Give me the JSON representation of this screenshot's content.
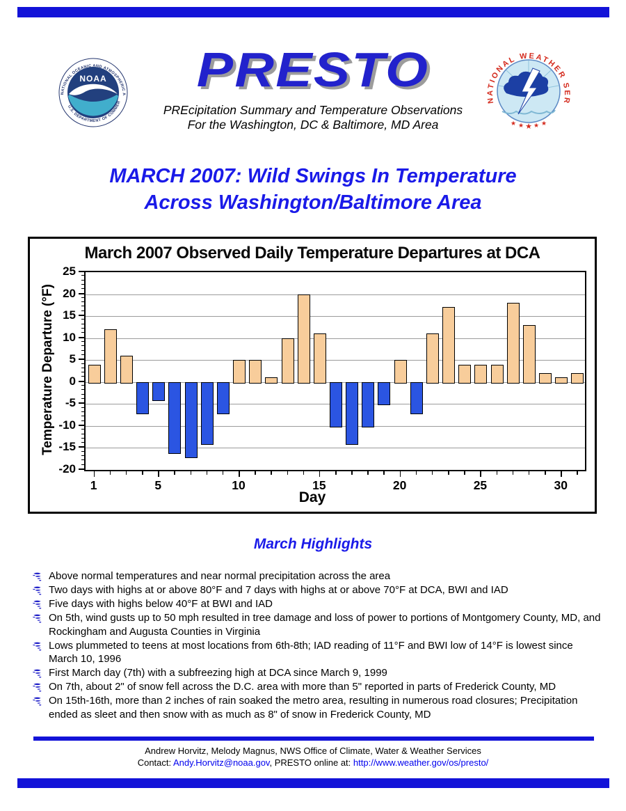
{
  "page": {
    "accent_blue": "#1a1ae8",
    "rule_blue": "#1313d8",
    "link_blue": "#0000ee"
  },
  "header": {
    "title": "PRESTO",
    "subtitle_line1": "PREcipitation Summary and Temperature Observations",
    "subtitle_line2": "For the Washington, DC & Baltimore, MD Area",
    "noaa_logo": {
      "ring_top": "NATIONAL OCEANIC AND ATMOSPHERIC ADMINISTRATION",
      "ring_bottom": "U.S. DEPARTMENT OF COMMERCE",
      "label": "NOAA"
    },
    "nws_logo": {
      "ring": "NATIONAL WEATHER SERVICE"
    }
  },
  "headline": {
    "line1": "MARCH 2007: Wild Swings In Temperature",
    "line2": "Across Washington/Baltimore Area"
  },
  "chart_data": {
    "type": "bar",
    "title": "March 2007 Observed Daily Temperature Departures at DCA",
    "xlabel": "Day",
    "ylabel": "Temperature Departure (°F)",
    "categories": [
      1,
      2,
      3,
      4,
      5,
      6,
      7,
      8,
      9,
      10,
      11,
      12,
      13,
      14,
      15,
      16,
      17,
      18,
      19,
      20,
      21,
      22,
      23,
      24,
      25,
      26,
      27,
      28,
      29,
      30,
      31
    ],
    "values": [
      4,
      12,
      6,
      -7,
      -4,
      -16,
      -17,
      -14,
      -7,
      5,
      5,
      1,
      10,
      20,
      11,
      -10,
      -14,
      -10,
      -5,
      5,
      -7,
      11,
      17,
      4,
      4,
      4,
      18,
      13,
      2,
      1,
      2
    ],
    "ylim": [
      -20,
      25
    ],
    "ytick_step": 5,
    "xticks": [
      1,
      5,
      10,
      15,
      20,
      25,
      30
    ],
    "grid": true,
    "legend": "none",
    "positive_color": "#f8cd9b",
    "negative_color": "#2b55e2",
    "bar_border_color": "#000000",
    "gridline_color": "#9b9b9b"
  },
  "highlights": {
    "title": "March Highlights",
    "items": [
      "Above normal temperatures and near normal precipitation across the area",
      "Two days with highs at or above 80°F and 7 days with highs at or above 70°F at DCA, BWI and IAD",
      "Five days with highs below 40°F at BWI and IAD",
      "On 5th, wind gusts up to 50 mph resulted in tree damage and loss of power to portions of Montgomery County, MD, and Rockingham and Augusta Counties in Virginia",
      "Lows plummeted to teens at most locations from 6th-8th; IAD reading of 11°F and BWI low of 14°F is lowest since March 10, 1996",
      "First March day (7th) with a subfreezing high at DCA since March 9, 1999",
      "On 7th, about 2\" of snow fell across the D.C. area with more than 5\" reported in parts of Frederick County, MD",
      "On 15th-16th, more than 2 inches of rain soaked the metro area, resulting in numerous road closures; Precipitation ended as sleet and then snow with as much as 8\" of snow in Frederick County, MD"
    ]
  },
  "footer": {
    "line1": "Andrew Horvitz, Melody Magnus, NWS Office of Climate, Water & Weather Services",
    "contact_prefix": "Contact: ",
    "email": "Andy.Horvitz@noaa.gov",
    "middle": ", PRESTO online at: ",
    "url": "http://www.weather.gov/os/presto/"
  }
}
